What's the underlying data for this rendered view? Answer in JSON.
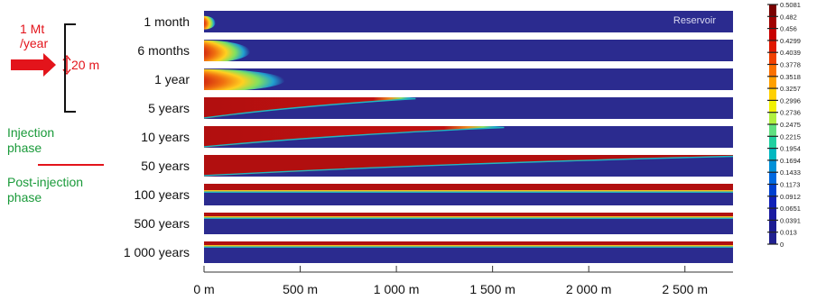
{
  "injection": {
    "rate_line1": "1 Mt",
    "rate_line2": "/year",
    "thickness": "20 m",
    "rate_color": "#e3141b"
  },
  "phases": {
    "injection_line1": "Injection",
    "injection_line2": "phase",
    "post_line1": "Post-injection",
    "post_line2": "phase",
    "phase_color": "#1a9a3a",
    "divider_color": "#e3141b"
  },
  "reservoir_label": "Reservoir",
  "timesteps": [
    {
      "label": "1 month",
      "front_m": 60,
      "top_m": 40,
      "lobe": true
    },
    {
      "label": "6 months",
      "front_m": 240,
      "top_m": 160,
      "lobe": true
    },
    {
      "label": "1 year",
      "front_m": 420,
      "top_m": 280,
      "lobe": true
    },
    {
      "label": "5 years",
      "front_m": 1100,
      "top_m": 240,
      "lobe": false
    },
    {
      "label": "10 years",
      "front_m": 1560,
      "top_m": 150,
      "lobe": false
    },
    {
      "label": "50 years",
      "front_m": 2750,
      "top_m": 2750,
      "lobe": false
    },
    {
      "label": "100 years",
      "front_m": 2750,
      "top_m": 2750,
      "lobe": false
    },
    {
      "label": "500 years",
      "front_m": 2750,
      "top_m": 2750,
      "lobe": false
    },
    {
      "label": "1 000 years",
      "front_m": 2750,
      "top_m": 2750,
      "lobe": false
    }
  ],
  "xaxis": {
    "max_m": 2750,
    "ticks": [
      {
        "value": 0,
        "label": "0 m"
      },
      {
        "value": 500,
        "label": "500 m"
      },
      {
        "value": 1000,
        "label": "1 000 m"
      },
      {
        "value": 1500,
        "label": "1 500 m"
      },
      {
        "value": 2000,
        "label": "2 000 m"
      },
      {
        "value": 2500,
        "label": "2 500 m"
      }
    ]
  },
  "colorbar": {
    "labels": [
      "0.5081",
      "0.482",
      "0.456",
      "0.4299",
      "0.4039",
      "0.3778",
      "0.3518",
      "0.3257",
      "0.2996",
      "0.2736",
      "0.2475",
      "0.2215",
      "0.1954",
      "0.1694",
      "0.1433",
      "0.1173",
      "0.0912",
      "0.0651",
      "0.0391",
      "0.013",
      "0"
    ],
    "colors": [
      "#7a0000",
      "#a00000",
      "#c80000",
      "#e01800",
      "#f04000",
      "#fa7000",
      "#ffa000",
      "#ffd000",
      "#f0f000",
      "#b0f040",
      "#60e080",
      "#20d0a0",
      "#00b8c0",
      "#0090d8",
      "#0068e0",
      "#0040d0",
      "#1020b8",
      "#1a1aa0",
      "#1c1c92",
      "#202090"
    ]
  },
  "colors": {
    "reservoir": "#2b2b8f",
    "co2": "#b10f0f"
  }
}
